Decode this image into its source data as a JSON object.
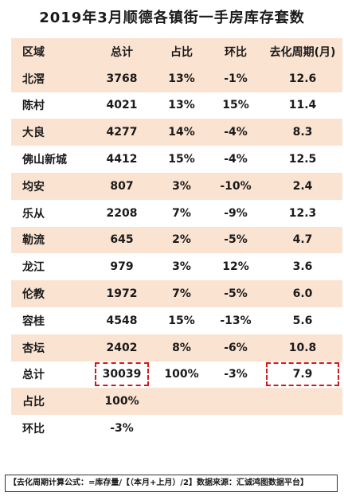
{
  "title": "2019年3月顺德各镇街一手房库存套数",
  "columns": [
    "区域",
    "总计",
    "占比",
    "环比",
    "去化周期(月)"
  ],
  "rows": [
    {
      "region": "北滘",
      "total": "3768",
      "pct": "13%",
      "change": "-1%",
      "cycle": "12.6"
    },
    {
      "region": "陈村",
      "total": "4021",
      "pct": "13%",
      "change": "15%",
      "cycle": "11.4"
    },
    {
      "region": "大良",
      "total": "4277",
      "pct": "14%",
      "change": "-4%",
      "cycle": "8.3"
    },
    {
      "region": "佛山新城",
      "total": "4412",
      "pct": "15%",
      "change": "-4%",
      "cycle": "12.5"
    },
    {
      "region": "均安",
      "total": "807",
      "pct": "3%",
      "change": "-10%",
      "cycle": "2.4"
    },
    {
      "region": "乐从",
      "total": "2208",
      "pct": "7%",
      "change": "-9%",
      "cycle": "12.3"
    },
    {
      "region": "勒流",
      "total": "645",
      "pct": "2%",
      "change": "-5%",
      "cycle": "4.7"
    },
    {
      "region": "龙江",
      "total": "979",
      "pct": "3%",
      "change": "12%",
      "cycle": "3.6"
    },
    {
      "region": "伦教",
      "total": "1972",
      "pct": "7%",
      "change": "-5%",
      "cycle": "6.0"
    },
    {
      "region": "容桂",
      "total": "4548",
      "pct": "15%",
      "change": "-13%",
      "cycle": "5.6"
    },
    {
      "region": "杏坛",
      "total": "2402",
      "pct": "8%",
      "change": "-6%",
      "cycle": "10.8"
    }
  ],
  "summary": {
    "total_label": "总计",
    "total_value": "30039",
    "total_pct": "100%",
    "total_change": "-3%",
    "total_cycle": "7.9",
    "share_label": "占比",
    "share_value": "100%",
    "change_label": "环比",
    "change_value": "-3%"
  },
  "footer": "【去化周期计算公式：=库存量/【（本月+上月）/2】数据来源：汇诚鸿图数据平台】",
  "colors": {
    "row_shade": "#fbe3d2",
    "highlight_border": "#d9161c"
  }
}
